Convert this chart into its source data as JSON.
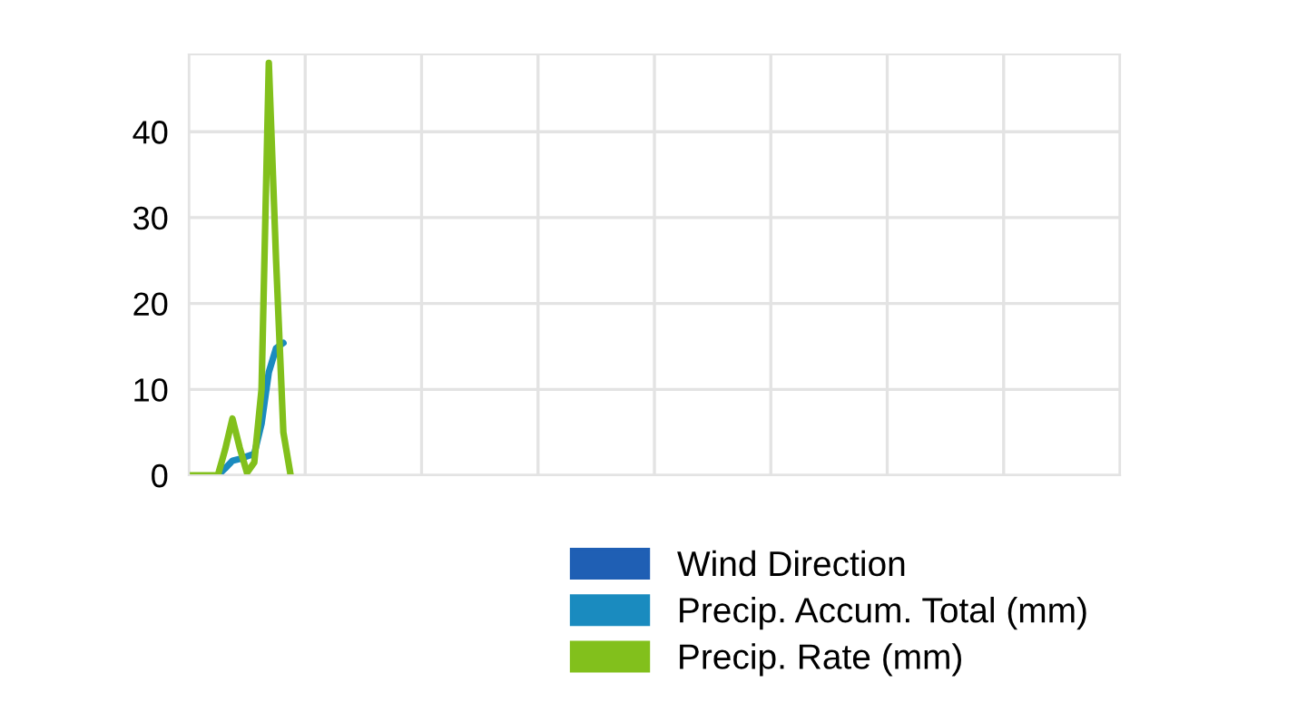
{
  "chart_data": {
    "type": "line",
    "categories": [
      null,
      null,
      null,
      null,
      null,
      null,
      null,
      null,
      null,
      null,
      null,
      null,
      null,
      null,
      null,
      null,
      null,
      null,
      null,
      null,
      null,
      null,
      null,
      null,
      null,
      null,
      null,
      null,
      null,
      null,
      null,
      null,
      null,
      null,
      null,
      null,
      null,
      null,
      null,
      null,
      null,
      null,
      null,
      null,
      null,
      null,
      null,
      null,
      null,
      null,
      null,
      null,
      null,
      null,
      null,
      null,
      null,
      null,
      null,
      null,
      null,
      null,
      null,
      null,
      null,
      null,
      null,
      null,
      null,
      null,
      null,
      null,
      null,
      null,
      null,
      null,
      null,
      null,
      null,
      null,
      null,
      null,
      null,
      null,
      null,
      null,
      null,
      null,
      null,
      null,
      null,
      null,
      null,
      null,
      null,
      null,
      null,
      null,
      null,
      null,
      null,
      null,
      null,
      null,
      null,
      null,
      null,
      null,
      null,
      null,
      null,
      null,
      null,
      null,
      null,
      null,
      null,
      null,
      null,
      null,
      null,
      null,
      null,
      null,
      null,
      null,
      null,
      null,
      null
    ],
    "series": [
      {
        "name": "Wind Direction",
        "color": "#1f5fb4",
        "values": [
          null,
          null,
          null,
          null,
          null,
          null,
          null,
          null,
          null,
          null,
          null,
          null,
          null,
          null,
          null,
          null,
          null,
          null,
          null,
          null,
          null,
          null,
          null,
          null,
          null,
          null,
          null,
          null,
          null,
          null,
          null,
          null,
          null,
          null,
          null,
          null,
          null,
          null,
          null,
          null,
          null,
          null,
          null,
          null,
          null,
          null,
          null,
          null,
          null,
          null,
          null,
          null,
          null,
          null,
          null,
          null,
          null,
          null,
          null,
          null,
          null,
          null,
          null,
          null,
          null,
          null,
          null,
          null,
          null,
          null,
          null,
          null,
          null,
          null,
          null,
          null,
          null,
          null,
          null,
          null,
          null,
          null,
          null,
          null,
          null,
          null,
          null,
          null,
          null,
          null,
          null,
          null,
          null,
          null,
          null,
          null,
          null,
          null,
          null,
          null,
          null,
          null,
          null,
          null,
          null,
          null,
          null,
          null,
          null,
          null,
          null,
          null,
          null,
          null,
          null,
          null,
          null,
          null,
          null,
          null,
          null,
          null,
          null,
          null,
          null,
          null,
          null,
          null,
          null
        ]
      },
      {
        "name": "Precip. Accum. Total (mm)",
        "color": "#1a8bbf",
        "values": [
          null,
          null,
          null,
          null,
          0,
          0.8,
          1.7,
          1.9,
          2.2,
          2.5,
          6,
          12,
          14.8,
          15.4,
          null,
          null,
          null,
          null,
          null,
          null,
          null,
          null,
          null,
          null,
          null,
          null,
          null,
          null,
          null,
          null,
          null,
          null,
          null,
          null,
          null,
          null,
          null,
          null,
          null,
          null,
          null,
          null,
          null,
          null,
          null,
          null,
          null,
          null,
          null,
          null,
          null,
          null,
          null,
          null,
          null,
          null,
          null,
          null,
          null,
          null,
          null,
          null,
          null,
          null,
          null,
          null,
          null,
          null,
          null,
          null,
          null,
          null,
          null,
          null,
          null,
          null,
          null,
          null,
          null,
          null,
          null,
          null,
          null,
          null,
          null,
          null,
          null,
          null,
          null,
          null,
          null,
          null,
          null,
          null,
          null,
          null,
          null,
          null,
          null,
          null,
          null,
          null,
          null,
          null,
          null,
          null,
          null,
          null,
          null,
          null,
          null,
          null,
          null,
          null,
          null,
          null,
          null,
          null,
          null,
          null,
          null,
          null,
          null,
          null,
          null,
          null,
          null,
          null,
          null
        ]
      },
      {
        "name": "Precip. Rate (mm)",
        "color": "#82c01c",
        "values": [
          0,
          0,
          0,
          0,
          0,
          3,
          6.6,
          3.2,
          0.3,
          1.5,
          10,
          48,
          25,
          5,
          0,
          null,
          null,
          null,
          null,
          null,
          null,
          null,
          null,
          null,
          null,
          null,
          null,
          null,
          null,
          null,
          null,
          null,
          null,
          null,
          null,
          null,
          null,
          null,
          null,
          null,
          null,
          null,
          null,
          null,
          null,
          null,
          null,
          null,
          null,
          null,
          null,
          null,
          null,
          null,
          null,
          null,
          null,
          null,
          null,
          null,
          null,
          null,
          null,
          null,
          null,
          null,
          null,
          null,
          null,
          null,
          null,
          null,
          null,
          null,
          null,
          null,
          null,
          null,
          null,
          null,
          null,
          null,
          null,
          null,
          null,
          null,
          null,
          null,
          null,
          null,
          null,
          null,
          null,
          null,
          null,
          null,
          null,
          null,
          null,
          null,
          null,
          null,
          null,
          null,
          null,
          null,
          null,
          null,
          null,
          null,
          null,
          null,
          null,
          null,
          null,
          null,
          null,
          null,
          null,
          null,
          null,
          null,
          null,
          null,
          null,
          null,
          null,
          null,
          null
        ]
      }
    ],
    "ylim": [
      0,
      49
    ],
    "yticks": [
      0,
      10,
      20,
      30,
      40
    ],
    "grid": true,
    "legend": "bottom right",
    "tick_labels": "y",
    "line_style": "solid",
    "marker": "none"
  }
}
